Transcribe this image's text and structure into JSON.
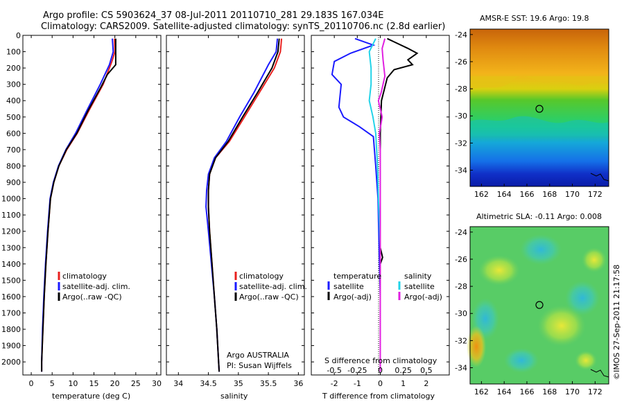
{
  "header": {
    "line1": "Argo profile: CS 5903624_37 08-Jul-2011 20110710_281 29.183S 167.034E",
    "line2": "Climatology: CARS2009. Satellite-adjusted climatology: synTS_20110706.nc (2.8d earlier)"
  },
  "colors": {
    "climatology": "#e8201e",
    "satellite": "#1a1aff",
    "argo": "#000000",
    "sat_salinity": "#22d3e8",
    "argo_salinity": "#e020e0"
  },
  "chart_data": [
    {
      "type": "line",
      "xlabel": "temperature (deg C)",
      "xticks": [
        "0",
        "5",
        "10",
        "15",
        "20",
        "25",
        "30"
      ],
      "xlim": [
        -2,
        31
      ],
      "ylim": [
        2080,
        0
      ],
      "yticks": [
        "0",
        "100",
        "200",
        "300",
        "400",
        "500",
        "600",
        "700",
        "800",
        "900",
        "1000",
        "1100",
        "1200",
        "1300",
        "1400",
        "1500",
        "1600",
        "1700",
        "1800",
        "1900",
        "2000"
      ],
      "legend": [
        "climatology",
        "satellite-adj. clim.",
        "Argo(..raw -QC)"
      ],
      "series": [
        {
          "name": "climatology",
          "color": "#e8201e",
          "points": [
            [
              19.9,
              20
            ],
            [
              20,
              100
            ],
            [
              19.3,
              160
            ],
            [
              17.2,
              300
            ],
            [
              13.8,
              460
            ],
            [
              11,
              600
            ],
            [
              8.5,
              700
            ],
            [
              6.6,
              800
            ],
            [
              5.4,
              900
            ],
            [
              4.6,
              1000
            ],
            [
              4,
              1200
            ],
            [
              3.5,
              1400
            ],
            [
              3.1,
              1600
            ],
            [
              2.8,
              1800
            ],
            [
              2.5,
              2000
            ],
            [
              2.5,
              2060
            ]
          ]
        },
        {
          "name": "satellite-adj. clim.",
          "color": "#1a1aff",
          "points": [
            [
              19.4,
              20
            ],
            [
              19.6,
              100
            ],
            [
              18.7,
              180
            ],
            [
              16.5,
              300
            ],
            [
              13.3,
              460
            ],
            [
              10.6,
              600
            ],
            [
              8.3,
              700
            ],
            [
              6.5,
              800
            ],
            [
              5.3,
              900
            ],
            [
              4.5,
              1000
            ],
            [
              3.9,
              1200
            ],
            [
              3.4,
              1400
            ],
            [
              3,
              1600
            ],
            [
              2.7,
              1800
            ],
            [
              2.5,
              2000
            ],
            [
              2.5,
              2060
            ]
          ]
        },
        {
          "name": "Argo(..raw -QC)",
          "color": "#000000",
          "points": [
            [
              20.2,
              20
            ],
            [
              20.2,
              180
            ],
            [
              18.2,
              240
            ],
            [
              16.6,
              320
            ],
            [
              13.6,
              460
            ],
            [
              10.9,
              600
            ],
            [
              8.4,
              700
            ],
            [
              6.6,
              800
            ],
            [
              5.4,
              900
            ],
            [
              4.6,
              1000
            ],
            [
              4,
              1200
            ],
            [
              3.5,
              1400
            ],
            [
              3.1,
              1600
            ],
            [
              2.8,
              1800
            ],
            [
              2.5,
              2000
            ],
            [
              2.5,
              2060
            ]
          ]
        }
      ]
    },
    {
      "type": "line",
      "xlabel": "salinity",
      "xticks": [
        "34",
        "34.5",
        "35",
        "35.5",
        "36"
      ],
      "xlim": [
        33.8,
        36.1
      ],
      "ylim": [
        2080,
        0
      ],
      "legend": [
        "climatology",
        "satellite-adj. clim.",
        "Argo(..raw -QC)"
      ],
      "annotation": [
        "Argo AUSTRALIA",
        "PI: Susan Wijffels"
      ],
      "series": [
        {
          "name": "climatology",
          "color": "#e8201e",
          "points": [
            [
              35.72,
              20
            ],
            [
              35.7,
              100
            ],
            [
              35.6,
              200
            ],
            [
              35.35,
              350
            ],
            [
              35.1,
              500
            ],
            [
              34.85,
              650
            ],
            [
              34.62,
              750
            ],
            [
              34.52,
              850
            ],
            [
              34.5,
              950
            ],
            [
              34.5,
              1050
            ],
            [
              34.52,
              1200
            ],
            [
              34.56,
              1400
            ],
            [
              34.6,
              1600
            ],
            [
              34.64,
              1800
            ],
            [
              34.67,
              2000
            ],
            [
              34.68,
              2060
            ]
          ]
        },
        {
          "name": "satellite-adj. clim.",
          "color": "#1a1aff",
          "points": [
            [
              35.65,
              20
            ],
            [
              35.63,
              100
            ],
            [
              35.5,
              180
            ],
            [
              35.26,
              350
            ],
            [
              35.02,
              500
            ],
            [
              34.8,
              650
            ],
            [
              34.6,
              750
            ],
            [
              34.5,
              850
            ],
            [
              34.47,
              950
            ],
            [
              34.46,
              1050
            ],
            [
              34.5,
              1200
            ],
            [
              34.55,
              1400
            ],
            [
              34.6,
              1600
            ],
            [
              34.64,
              1800
            ],
            [
              34.67,
              2000
            ],
            [
              34.68,
              2060
            ]
          ]
        },
        {
          "name": "Argo(..raw -QC)",
          "color": "#000000",
          "points": [
            [
              35.68,
              20
            ],
            [
              35.66,
              100
            ],
            [
              35.56,
              200
            ],
            [
              35.32,
              350
            ],
            [
              35.07,
              500
            ],
            [
              34.83,
              650
            ],
            [
              34.62,
              750
            ],
            [
              34.52,
              850
            ],
            [
              34.5,
              950
            ],
            [
              34.5,
              1050
            ],
            [
              34.52,
              1200
            ],
            [
              34.56,
              1400
            ],
            [
              34.6,
              1600
            ],
            [
              34.64,
              1800
            ],
            [
              34.67,
              2000
            ],
            [
              34.68,
              2060
            ]
          ]
        }
      ]
    },
    {
      "type": "line",
      "xlabel_top": "S difference from climatology",
      "xticks_top": [
        "-0.5",
        "-0.25",
        "0",
        "0.25",
        "0.5"
      ],
      "xlabel": "T difference from climatology",
      "xticks": [
        "-2",
        "-1",
        "0",
        "1",
        "2"
      ],
      "xlim": [
        -3,
        3
      ],
      "ylim": [
        2080,
        0
      ],
      "legend_left_title": "temperature",
      "legend_left": [
        "satellite",
        "Argo(-adj)"
      ],
      "legend_right_title": "salinity",
      "legend_right": [
        "satellite",
        "Argo(-adj)"
      ],
      "series": [
        {
          "name": "T satellite",
          "color": "#1a1aff",
          "points": [
            [
              -1.1,
              20
            ],
            [
              -0.3,
              60
            ],
            [
              -1.3,
              110
            ],
            [
              -2,
              160
            ],
            [
              -2.1,
              240
            ],
            [
              -1.7,
              300
            ],
            [
              -1.8,
              440
            ],
            [
              -1.6,
              500
            ],
            [
              -0.9,
              560
            ],
            [
              -0.3,
              620
            ],
            [
              -0.2,
              800
            ],
            [
              -0.1,
              1000
            ],
            [
              -0.05,
              1300
            ],
            [
              0,
              1600
            ],
            [
              0,
              2060
            ]
          ]
        },
        {
          "name": "T Argo(-adj)",
          "color": "#000000",
          "points": [
            [
              0.3,
              20
            ],
            [
              0.6,
              40
            ],
            [
              1.2,
              80
            ],
            [
              1.6,
              110
            ],
            [
              1.2,
              150
            ],
            [
              1.4,
              180
            ],
            [
              0.6,
              210
            ],
            [
              0.3,
              260
            ],
            [
              0.05,
              400
            ],
            [
              0,
              600
            ],
            [
              0,
              1300
            ],
            [
              0.1,
              1360
            ],
            [
              0,
              1400
            ],
            [
              0,
              2060
            ]
          ]
        },
        {
          "name": "S satellite",
          "color": "#22d3e8",
          "points": [
            [
              -0.05,
              20
            ],
            [
              -0.12,
              100
            ],
            [
              -0.1,
              200
            ],
            [
              -0.1,
              300
            ],
            [
              -0.12,
              400
            ],
            [
              -0.08,
              500
            ],
            [
              -0.05,
              600
            ],
            [
              -0.03,
              800
            ],
            [
              -0.02,
              1000
            ],
            [
              0,
              1300
            ],
            [
              0,
              2060
            ]
          ]
        },
        {
          "name": "S Argo(-adj)",
          "color": "#e020e0",
          "points": [
            [
              0.05,
              20
            ],
            [
              0.02,
              80
            ],
            [
              0.03,
              150
            ],
            [
              0.05,
              250
            ],
            [
              0.01,
              350
            ],
            [
              -0.02,
              400
            ],
            [
              0.02,
              500
            ],
            [
              -0.01,
              600
            ],
            [
              0,
              700
            ],
            [
              0,
              2060
            ]
          ]
        }
      ]
    }
  ],
  "maps": [
    {
      "title": "AMSR-E SST: 19.6 Argo: 19.8",
      "xticks": [
        "162",
        "164",
        "166",
        "168",
        "170",
        "172"
      ],
      "yticks": [
        "-24",
        "-26",
        "-28",
        "-30",
        "-32",
        "-34"
      ]
    },
    {
      "title": "Altimetric SLA: -0.11 Argo: 0.008",
      "xticks": [
        "162",
        "164",
        "166",
        "168",
        "170",
        "172"
      ],
      "yticks": [
        "-24",
        "-26",
        "-28",
        "-30",
        "-32",
        "-34"
      ]
    }
  ],
  "footer_side": "©IMOS 27-Sep-2011 21:17:58"
}
